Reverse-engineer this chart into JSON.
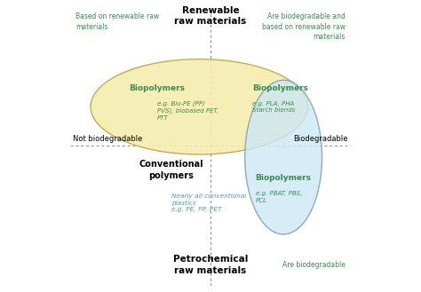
{
  "background_color": "#ffffff",
  "title_top": "Renewable\nraw materials",
  "title_bottom": "Petrochemical\nraw materials",
  "label_left": "Not biodegradable",
  "label_right": "Biodegradable",
  "corner_top_left": "Based on renewable raw\nmaterials",
  "corner_top_right": "Are biodegradable and\nbased on renewable raw\nmaterials",
  "corner_bottom_left_title": "Conventional\npolymers",
  "corner_bottom_left_sub": "Nearly all conventional\nplastics\ne.g. PE, PP, PET",
  "corner_bottom_right": "Are biodegradable",
  "green_color": "#3a8c50",
  "blue_color": "#5599bb",
  "ellipse1_facecolor": "#f5edb0",
  "ellipse1_edgecolor": "#b8a840",
  "ellipse2_facecolor": "#cce8f4",
  "ellipse2_edgecolor": "#7799aa",
  "bp1_title": "Biopolymers",
  "bp1_sub": "e.g. Bio-PE (PP/\nPVS), biobased PET,\nPTT",
  "bp2_title": "Biopolymers",
  "bp2_sub": "e.g. PLA, PHA\nStarch blends",
  "bp3_title": "Biopolymers",
  "bp3_sub": "e.g. PBAT, PBS,\nPCL"
}
